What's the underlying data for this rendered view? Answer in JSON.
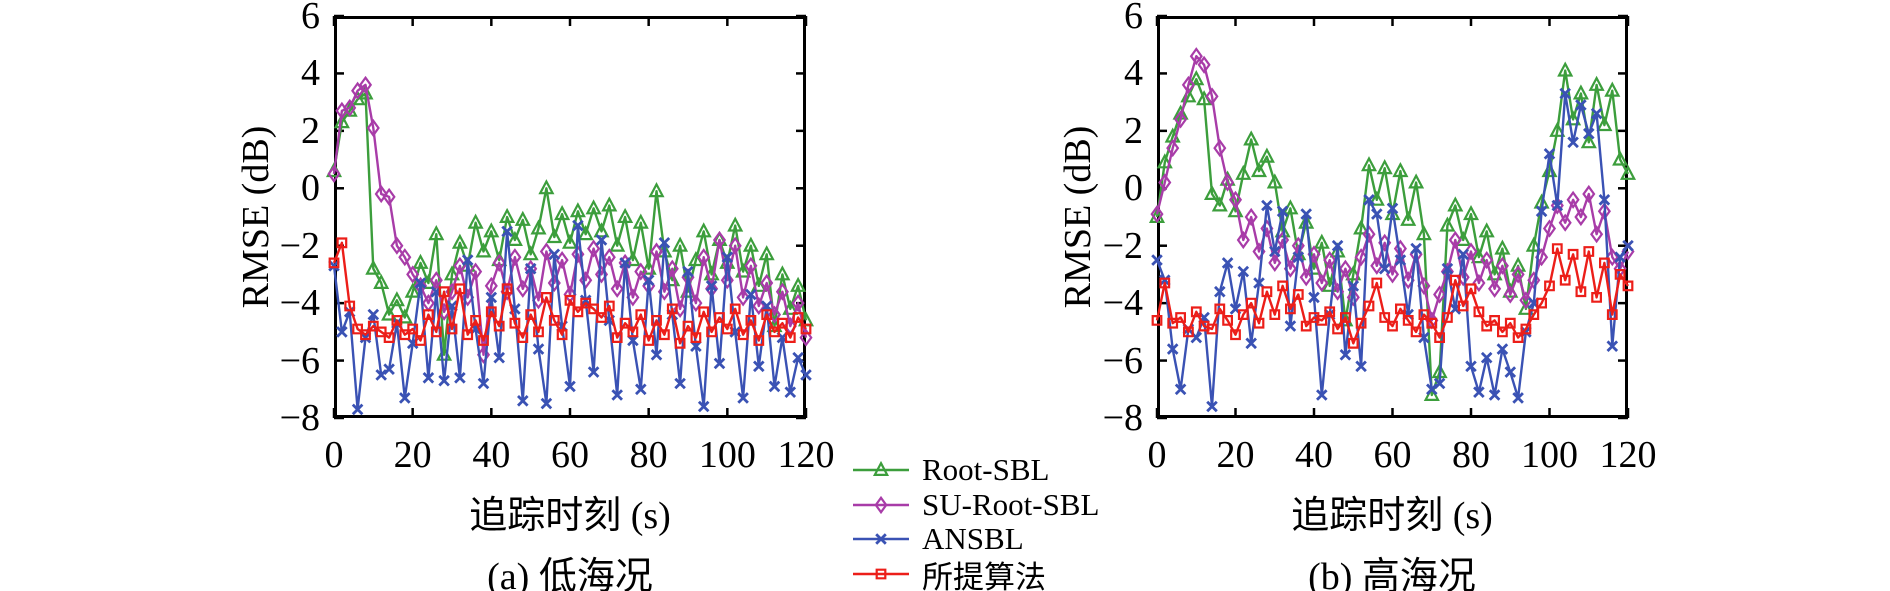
{
  "figure": {
    "background": "#ffffff",
    "legend": {
      "items": [
        {
          "label": "Root-SBL",
          "color": "#3C9E3C",
          "marker": "triangle"
        },
        {
          "label": "SU-Root-SBL",
          "color": "#A83CA8",
          "marker": "diamond"
        },
        {
          "label": "ANSBL",
          "color": "#3A52B4",
          "marker": "x"
        },
        {
          "label": "所提算法",
          "color": "#EC1E19",
          "marker": "square"
        }
      ]
    }
  },
  "chart_data": [
    {
      "id": "a",
      "type": "line",
      "caption": "(a) 低海况",
      "xlabel": "追踪时刻 (s)",
      "ylabel": "RMSE (dB)",
      "xlim": [
        0,
        120
      ],
      "ylim": [
        -8,
        6
      ],
      "x_ticks": [
        0,
        20,
        40,
        60,
        80,
        100,
        120
      ],
      "y_ticks": [
        6,
        4,
        2,
        0,
        -2,
        -4,
        -6,
        -8
      ],
      "grid": false,
      "x": [
        0,
        2,
        4,
        6,
        8,
        10,
        12,
        14,
        16,
        18,
        20,
        22,
        24,
        26,
        28,
        30,
        32,
        34,
        36,
        38,
        40,
        42,
        44,
        46,
        48,
        50,
        52,
        54,
        56,
        58,
        60,
        62,
        64,
        66,
        68,
        70,
        72,
        74,
        76,
        78,
        80,
        82,
        84,
        86,
        88,
        90,
        92,
        94,
        96,
        98,
        100,
        102,
        104,
        106,
        108,
        110,
        112,
        114,
        116,
        118,
        120
      ],
      "series": [
        {
          "name": "Root-SBL",
          "marker": "triangle",
          "color": "#3C9E3C",
          "values": [
            0.6,
            2.3,
            2.7,
            3.1,
            3.3,
            -2.8,
            -3.3,
            -4.4,
            -3.9,
            -4.5,
            -3.6,
            -2.6,
            -3.3,
            -1.6,
            -5.8,
            -3.0,
            -1.9,
            -2.7,
            -1.2,
            -2.2,
            -1.5,
            -2.5,
            -1.0,
            -1.8,
            -1.1,
            -2.3,
            -1.4,
            0.0,
            -1.7,
            -0.9,
            -1.9,
            -0.8,
            -1.6,
            -0.7,
            -1.5,
            -0.6,
            -2.0,
            -1.0,
            -2.5,
            -1.2,
            -2.8,
            -0.1,
            -2.2,
            -3.2,
            -2.0,
            -3.6,
            -2.5,
            -1.5,
            -3.0,
            -1.8,
            -2.6,
            -1.3,
            -2.9,
            -2.0,
            -3.4,
            -2.3,
            -4.8,
            -3.0,
            -4.2,
            -3.4,
            -4.6
          ]
        },
        {
          "name": "SU-Root-SBL",
          "marker": "diamond",
          "color": "#A83CA8",
          "values": [
            0.5,
            2.7,
            2.8,
            3.4,
            3.6,
            2.1,
            -0.2,
            -0.3,
            -2.0,
            -2.4,
            -3.0,
            -3.4,
            -4.0,
            -3.2,
            -4.3,
            -3.6,
            -2.7,
            -3.8,
            -2.9,
            -5.8,
            -3.4,
            -2.6,
            -3.6,
            -2.4,
            -3.5,
            -2.8,
            -3.9,
            -2.2,
            -3.3,
            -2.5,
            -3.7,
            -2.3,
            -3.2,
            -2.1,
            -3.0,
            -2.4,
            -3.5,
            -2.6,
            -3.8,
            -2.9,
            -3.4,
            -2.2,
            -3.6,
            -2.8,
            -4.2,
            -3.1,
            -4.0,
            -2.4,
            -3.5,
            -1.8,
            -3.2,
            -2.0,
            -3.8,
            -2.7,
            -4.1,
            -3.3,
            -4.4,
            -3.6,
            -4.8,
            -4.0,
            -5.2
          ]
        },
        {
          "name": "ANSBL",
          "marker": "x",
          "color": "#3A52B4",
          "values": [
            -2.7,
            -5.0,
            -4.3,
            -7.7,
            -5.2,
            -4.4,
            -6.5,
            -6.3,
            -4.7,
            -7.3,
            -5.4,
            -3.3,
            -6.6,
            -3.6,
            -6.7,
            -4.1,
            -6.6,
            -2.5,
            -4.9,
            -6.8,
            -3.8,
            -5.9,
            -1.5,
            -4.2,
            -7.4,
            -2.8,
            -5.6,
            -7.5,
            -2.3,
            -4.8,
            -6.9,
            -1.3,
            -3.9,
            -6.4,
            -1.8,
            -4.6,
            -7.2,
            -2.6,
            -5.3,
            -7.0,
            -3.2,
            -5.8,
            -1.9,
            -4.4,
            -6.8,
            -2.9,
            -5.5,
            -7.6,
            -3.4,
            -6.1,
            -2.4,
            -5.0,
            -7.3,
            -3.7,
            -6.2,
            -4.1,
            -6.9,
            -5.2,
            -7.1,
            -5.9,
            -6.5
          ]
        },
        {
          "name": "所提算法",
          "marker": "square",
          "color": "#EC1E19",
          "values": [
            -2.6,
            -1.9,
            -4.1,
            -4.9,
            -5.1,
            -4.8,
            -5.0,
            -5.2,
            -4.6,
            -5.1,
            -4.9,
            -5.3,
            -4.4,
            -5.0,
            -3.6,
            -4.9,
            -3.5,
            -5.1,
            -4.6,
            -5.3,
            -4.3,
            -4.8,
            -3.5,
            -4.7,
            -5.2,
            -4.4,
            -5.0,
            -3.8,
            -4.6,
            -5.1,
            -3.9,
            -4.3,
            -4.0,
            -4.2,
            -4.5,
            -4.1,
            -5.2,
            -4.7,
            -5.0,
            -4.4,
            -5.3,
            -4.6,
            -5.1,
            -4.2,
            -5.4,
            -4.8,
            -5.2,
            -4.3,
            -5.0,
            -4.5,
            -4.9,
            -4.2,
            -5.1,
            -4.6,
            -5.3,
            -4.4,
            -5.0,
            -4.7,
            -5.2,
            -4.5,
            -4.9
          ]
        }
      ]
    },
    {
      "id": "b",
      "type": "line",
      "caption": "(b) 高海况",
      "xlabel": "追踪时刻 (s)",
      "ylabel": "RMSE (dB)",
      "xlim": [
        0,
        120
      ],
      "ylim": [
        -8,
        6
      ],
      "x_ticks": [
        0,
        20,
        40,
        60,
        80,
        100,
        120
      ],
      "y_ticks": [
        6,
        4,
        2,
        0,
        -2,
        -4,
        -6,
        -8
      ],
      "grid": false,
      "x": [
        0,
        2,
        4,
        6,
        8,
        10,
        12,
        14,
        16,
        18,
        20,
        22,
        24,
        26,
        28,
        30,
        32,
        34,
        36,
        38,
        40,
        42,
        44,
        46,
        48,
        50,
        52,
        54,
        56,
        58,
        60,
        62,
        64,
        66,
        68,
        70,
        72,
        74,
        76,
        78,
        80,
        82,
        84,
        86,
        88,
        90,
        92,
        94,
        96,
        98,
        100,
        102,
        104,
        106,
        108,
        110,
        112,
        114,
        116,
        118,
        120
      ],
      "series": [
        {
          "name": "Root-SBL",
          "marker": "triangle",
          "color": "#3C9E3C",
          "values": [
            -1.0,
            0.9,
            1.8,
            2.6,
            3.2,
            3.8,
            3.1,
            -0.2,
            -0.6,
            0.3,
            -0.8,
            0.5,
            1.7,
            0.6,
            1.1,
            0.2,
            -1.5,
            -0.7,
            -2.3,
            -1.2,
            -2.8,
            -1.9,
            -3.4,
            -2.2,
            -4.6,
            -3.0,
            -1.4,
            0.8,
            -0.4,
            0.7,
            -0.9,
            0.6,
            -1.1,
            0.2,
            -1.6,
            -7.2,
            -6.4,
            -1.3,
            -0.6,
            -1.8,
            -0.9,
            -2.4,
            -1.5,
            -3.0,
            -2.1,
            -3.6,
            -2.7,
            -4.2,
            -2.0,
            -0.5,
            0.6,
            2.0,
            4.1,
            2.4,
            3.3,
            1.6,
            3.6,
            2.2,
            3.4,
            1.0,
            0.5
          ]
        },
        {
          "name": "SU-Root-SBL",
          "marker": "diamond",
          "color": "#A83CA8",
          "values": [
            -0.9,
            0.2,
            1.4,
            2.4,
            3.6,
            4.6,
            4.3,
            3.2,
            1.4,
            0.2,
            -0.4,
            -1.8,
            -1.0,
            -2.2,
            -1.4,
            -2.6,
            -1.8,
            -2.8,
            -2.0,
            -3.1,
            -2.3,
            -3.3,
            -2.5,
            -3.6,
            -2.8,
            -3.8,
            -2.4,
            -1.6,
            -2.7,
            -1.9,
            -3.0,
            -2.1,
            -3.2,
            -2.3,
            -3.4,
            -4.6,
            -3.7,
            -2.9,
            -1.8,
            -3.1,
            -2.2,
            -3.3,
            -2.5,
            -3.5,
            -2.7,
            -3.7,
            -3.0,
            -3.9,
            -3.2,
            -2.4,
            -1.4,
            -0.6,
            -1.2,
            -0.4,
            -1.0,
            -0.2,
            -1.6,
            -0.8,
            -2.4,
            -2.8,
            -2.2
          ]
        },
        {
          "name": "ANSBL",
          "marker": "x",
          "color": "#3A52B4",
          "values": [
            -2.5,
            -3.2,
            -5.6,
            -7.0,
            -4.9,
            -5.2,
            -4.5,
            -7.6,
            -3.6,
            -2.6,
            -4.2,
            -2.9,
            -5.4,
            -3.3,
            -0.6,
            -2.2,
            -0.8,
            -4.8,
            -2.4,
            -0.9,
            -3.8,
            -7.2,
            -4.4,
            -2.0,
            -5.8,
            -3.4,
            -6.2,
            -0.4,
            -0.9,
            -2.8,
            -0.7,
            -2.5,
            -4.4,
            -2.1,
            -5.2,
            -7.0,
            -6.8,
            -2.8,
            -4.2,
            -2.3,
            -6.2,
            -7.1,
            -5.9,
            -7.2,
            -5.6,
            -6.4,
            -7.3,
            -5.0,
            -4.0,
            -0.8,
            1.2,
            -0.6,
            3.3,
            1.6,
            2.9,
            1.9,
            2.6,
            -0.4,
            -5.5,
            -2.4,
            -2.0
          ]
        },
        {
          "name": "所提算法",
          "marker": "square",
          "color": "#EC1E19",
          "values": [
            -4.6,
            -3.3,
            -4.7,
            -4.5,
            -5.0,
            -4.3,
            -4.8,
            -4.9,
            -4.2,
            -4.6,
            -5.1,
            -4.4,
            -4.0,
            -4.7,
            -3.6,
            -4.4,
            -3.4,
            -4.2,
            -3.7,
            -4.8,
            -4.5,
            -4.6,
            -4.3,
            -4.9,
            -4.5,
            -5.4,
            -4.7,
            -4.1,
            -3.3,
            -4.5,
            -4.8,
            -4.2,
            -4.6,
            -5.0,
            -4.4,
            -4.7,
            -5.2,
            -4.5,
            -3.2,
            -4.1,
            -3.5,
            -4.3,
            -4.8,
            -4.6,
            -5.0,
            -4.7,
            -5.2,
            -4.9,
            -4.4,
            -4.0,
            -3.4,
            -2.1,
            -3.2,
            -2.3,
            -3.6,
            -2.2,
            -3.8,
            -2.6,
            -4.4,
            -3.0,
            -3.4
          ]
        }
      ]
    }
  ]
}
